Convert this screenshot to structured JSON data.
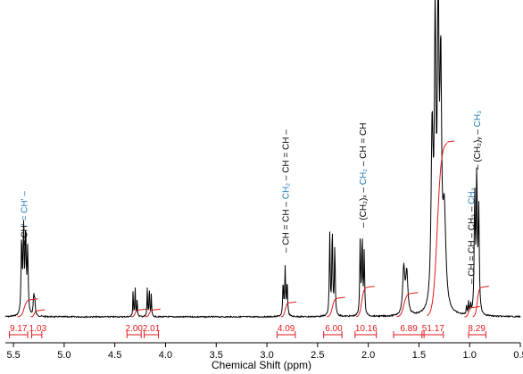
{
  "chart_data": {
    "type": "line",
    "xlabel": "Chemical Shift (ppm)",
    "xlim": [
      5.58,
      0.5
    ],
    "x_ticks": [
      "5.5",
      "5.0",
      "4.5",
      "4.0",
      "3.5",
      "3.0",
      "2.5",
      "2.0",
      "1.5",
      "1.0",
      "0.5"
    ],
    "series": [
      {
        "style": "spectrum",
        "color": "#000000",
        "peaks": [
          {
            "ppm": 5.42,
            "height": 0.235,
            "width": 0.006
          },
          {
            "ppm": 5.4,
            "height": 0.265,
            "width": 0.006
          },
          {
            "ppm": 5.38,
            "height": 0.255,
            "width": 0.006
          },
          {
            "ppm": 5.36,
            "height": 0.205,
            "width": 0.006
          },
          {
            "ppm": 5.3,
            "height": 0.06,
            "width": 0.006
          },
          {
            "ppm": 5.29,
            "height": 0.045,
            "width": 0.006
          },
          {
            "ppm": 4.32,
            "height": 0.085,
            "width": 0.0035
          },
          {
            "ppm": 4.3,
            "height": 0.095,
            "width": 0.0035
          },
          {
            "ppm": 4.28,
            "height": 0.06,
            "width": 0.0035
          },
          {
            "ppm": 4.18,
            "height": 0.09,
            "width": 0.0035
          },
          {
            "ppm": 4.16,
            "height": 0.1,
            "width": 0.0035
          },
          {
            "ppm": 4.14,
            "height": 0.07,
            "width": 0.0035
          },
          {
            "ppm": 2.84,
            "height": 0.105,
            "width": 0.005
          },
          {
            "ppm": 2.82,
            "height": 0.15,
            "width": 0.005
          },
          {
            "ppm": 2.8,
            "height": 0.11,
            "width": 0.005
          },
          {
            "ppm": 2.38,
            "height": 0.26,
            "width": 0.005
          },
          {
            "ppm": 2.355,
            "height": 0.275,
            "width": 0.005
          },
          {
            "ppm": 2.33,
            "height": 0.22,
            "width": 0.005
          },
          {
            "ppm": 2.08,
            "height": 0.235,
            "width": 0.005
          },
          {
            "ppm": 2.06,
            "height": 0.25,
            "width": 0.005
          },
          {
            "ppm": 2.04,
            "height": 0.2,
            "width": 0.005
          },
          {
            "ppm": 1.65,
            "height": 0.15,
            "width": 0.012
          },
          {
            "ppm": 1.62,
            "height": 0.135,
            "width": 0.012
          },
          {
            "ppm": 1.37,
            "height": 0.56,
            "width": 0.012
          },
          {
            "ppm": 1.34,
            "height": 0.86,
            "width": 0.009
          },
          {
            "ppm": 1.31,
            "height": 0.94,
            "width": 0.009
          },
          {
            "ppm": 1.285,
            "height": 0.72,
            "width": 0.01
          },
          {
            "ppm": 1.25,
            "height": 0.3,
            "width": 0.018
          },
          {
            "ppm": 1.03,
            "height": 0.03,
            "width": 0.004
          },
          {
            "ppm": 1.01,
            "height": 0.04,
            "width": 0.004
          },
          {
            "ppm": 0.99,
            "height": 0.03,
            "width": 0.004
          },
          {
            "ppm": 0.95,
            "height": 0.37,
            "width": 0.006
          },
          {
            "ppm": 0.93,
            "height": 0.44,
            "width": 0.006
          },
          {
            "ppm": 0.91,
            "height": 0.33,
            "width": 0.006
          }
        ]
      },
      {
        "style": "integral",
        "color": "#e31a1c",
        "integrals": [
          {
            "from": 5.46,
            "to": 5.33,
            "rise": 0.055
          },
          {
            "from": 5.33,
            "to": 5.26,
            "rise": 0.02
          },
          {
            "from": 4.34,
            "to": 4.26,
            "rise": 0.022
          },
          {
            "from": 4.2,
            "to": 4.12,
            "rise": 0.022
          },
          {
            "from": 2.86,
            "to": 2.78,
            "rise": 0.045
          },
          {
            "from": 2.41,
            "to": 2.3,
            "rise": 0.06
          },
          {
            "from": 2.12,
            "to": 2.01,
            "rise": 0.095
          },
          {
            "from": 1.72,
            "to": 1.58,
            "rise": 0.075
          },
          {
            "from": 1.42,
            "to": 1.22,
            "rise": 0.56
          },
          {
            "from": 1.05,
            "to": 0.97,
            "rise": 0.03
          },
          {
            "from": 0.97,
            "to": 0.88,
            "rise": 0.095
          }
        ]
      }
    ],
    "integration_labels": [
      {
        "text": "9.17",
        "center": 5.45,
        "from": 5.54,
        "to": 5.36
      },
      {
        "text": "1.03",
        "center": 5.26,
        "from": 5.32,
        "to": 5.22
      },
      {
        "text": "2.00",
        "center": 4.31,
        "from": 4.38,
        "to": 4.24
      },
      {
        "text": "2.01",
        "center": 4.14,
        "from": 4.21,
        "to": 4.07
      },
      {
        "text": "4.09",
        "center": 2.81,
        "from": 2.9,
        "to": 2.72
      },
      {
        "text": "6.00",
        "center": 2.34,
        "from": 2.44,
        "to": 2.26
      },
      {
        "text": "10.16",
        "center": 2.02,
        "from": 2.13,
        "to": 1.92
      },
      {
        "text": "6.89",
        "center": 1.6,
        "from": 1.75,
        "to": 1.45
      },
      {
        "text": "51.17",
        "center": 1.36,
        "from": 1.47,
        "to": 1.26
      },
      {
        "text": "8.29",
        "center": 0.93,
        "from": 1.01,
        "to": 0.84
      }
    ],
    "structure_labels": [
      {
        "ppm": 5.4,
        "parts": [
          {
            "t": "– CH",
            "c": "#000000"
          },
          {
            "t": "' = CH' –",
            "c": "#1f78b4"
          }
        ]
      },
      {
        "ppm": 2.82,
        "parts": [
          {
            "t": "– CH = CH – ",
            "c": "#000000"
          },
          {
            "t": "CH₂",
            "c": "#1f78b4"
          },
          {
            "t": " – CH = CH –",
            "c": "#000000"
          }
        ]
      },
      {
        "ppm": 2.06,
        "parts": [
          {
            "t": "– (CH₂)ₓ – ",
            "c": "#000000"
          },
          {
            "t": "CH₂",
            "c": "#1f78b4"
          },
          {
            "t": " – CH = CH",
            "c": "#000000"
          }
        ]
      },
      {
        "ppm": 0.99,
        "parts": [
          {
            "t": "– CH = CH – CH₂ – ",
            "c": "#000000"
          },
          {
            "t": "CH₃",
            "c": "#1f78b4"
          }
        ]
      },
      {
        "ppm": 0.93,
        "parts": [
          {
            "t": "– (CH₂)ᵧ – ",
            "c": "#000000"
          },
          {
            "t": "CH₃",
            "c": "#1f78b4"
          }
        ]
      }
    ],
    "grid": false,
    "legend": "none"
  }
}
